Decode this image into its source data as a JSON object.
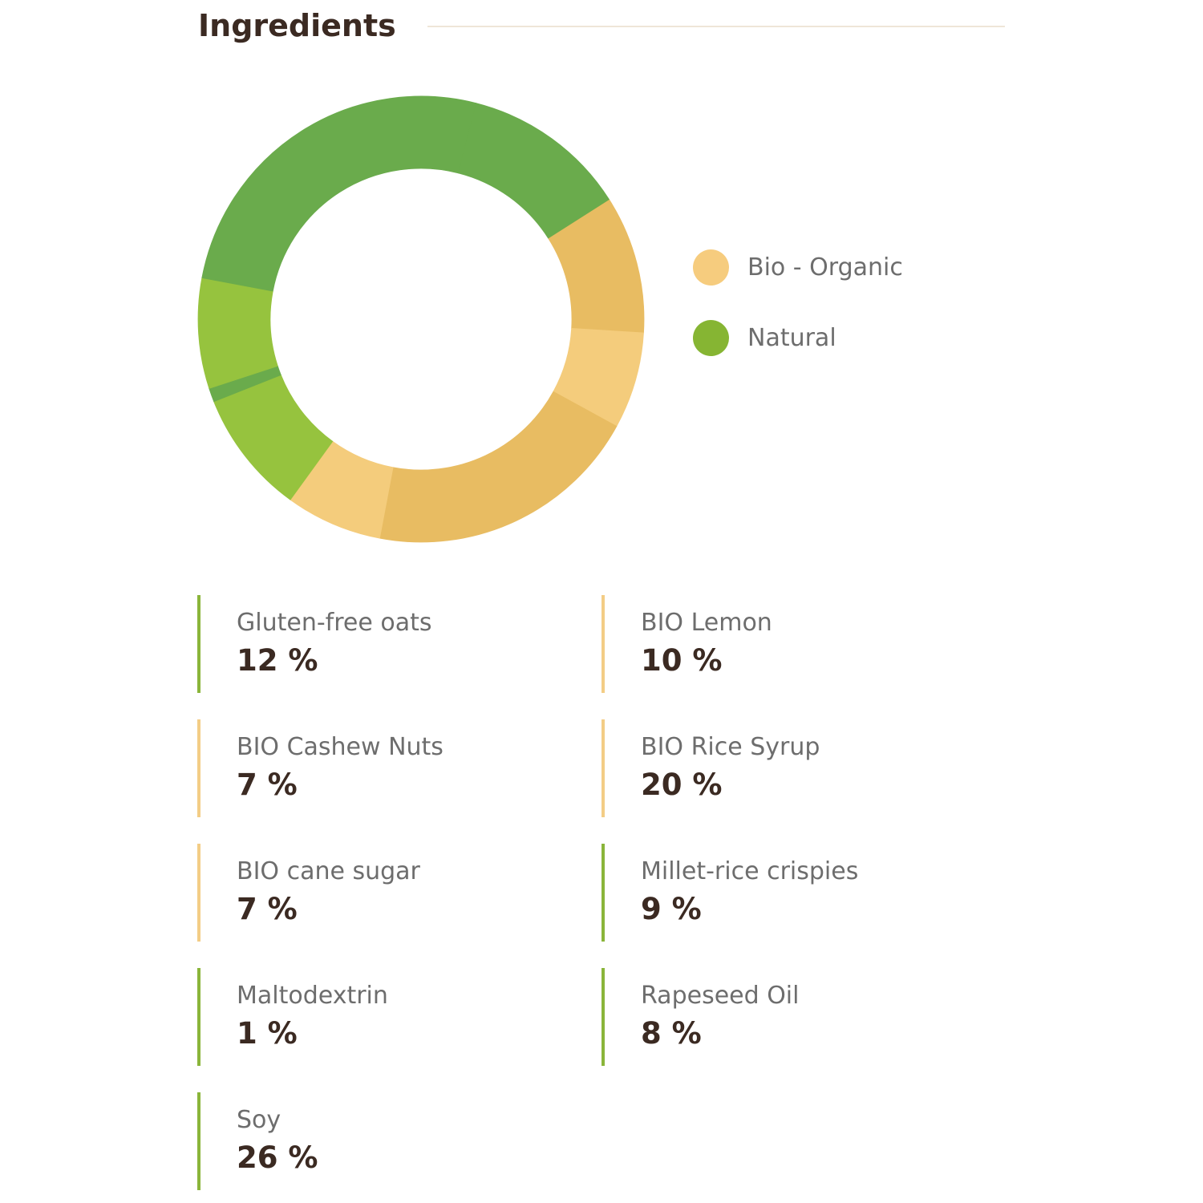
{
  "page": {
    "title": "Ingredients"
  },
  "colors": {
    "title_text": "#3b2a22",
    "muted_text": "#6d6d6d",
    "rule": "#efe6d8",
    "natural_dark": "#6aab4c",
    "natural_light": "#96c33e",
    "bio_dark": "#e8bc62",
    "bio_light": "#f4cc7c",
    "legend_bio": "#f6cc7e",
    "legend_natural": "#86b533",
    "bar_bio": "#f3cd86",
    "bar_natural": "#8ab53a"
  },
  "legend": [
    {
      "label": "Bio - Organic",
      "category": "bio"
    },
    {
      "label": "Natural",
      "category": "natural"
    }
  ],
  "chart_data": {
    "type": "pie",
    "variant": "donut",
    "legend_position": "right",
    "slices": [
      {
        "label": "BIO Lemon",
        "value": 10,
        "category": "bio",
        "color": "#e8bc62"
      },
      {
        "label": "BIO Cashew Nuts",
        "value": 7,
        "category": "bio",
        "color": "#f4cc7c"
      },
      {
        "label": "BIO Rice Syrup",
        "value": 20,
        "category": "bio",
        "color": "#e8bc62"
      },
      {
        "label": "BIO cane sugar",
        "value": 7,
        "category": "bio",
        "color": "#f4cc7c"
      },
      {
        "label": "Millet-rice crispies",
        "value": 9,
        "category": "natural",
        "color": "#96c33e"
      },
      {
        "label": "Maltodextrin",
        "value": 1,
        "category": "natural",
        "color": "#6aab4c"
      },
      {
        "label": "Rapeseed Oil",
        "value": 8,
        "category": "natural",
        "color": "#96c33e"
      },
      {
        "label": "Soy",
        "value": 26,
        "category": "natural",
        "color": "#6aab4c"
      },
      {
        "label": "Gluten-free oats",
        "value": 12,
        "category": "natural",
        "color": "#6aab4c"
      }
    ]
  },
  "ingredients": [
    {
      "name": "Gluten-free oats",
      "value": "12 %",
      "category": "natural"
    },
    {
      "name": "BIO Lemon",
      "value": "10 %",
      "category": "bio"
    },
    {
      "name": "BIO Cashew Nuts",
      "value": "7 %",
      "category": "bio"
    },
    {
      "name": "BIO Rice Syrup",
      "value": "20 %",
      "category": "bio"
    },
    {
      "name": "BIO cane sugar",
      "value": "7 %",
      "category": "bio"
    },
    {
      "name": "Millet-rice crispies",
      "value": "9 %",
      "category": "natural"
    },
    {
      "name": "Maltodextrin",
      "value": "1 %",
      "category": "natural"
    },
    {
      "name": "Rapeseed Oil",
      "value": "8 %",
      "category": "natural"
    },
    {
      "name": "Soy",
      "value": "26 %",
      "category": "natural"
    }
  ]
}
